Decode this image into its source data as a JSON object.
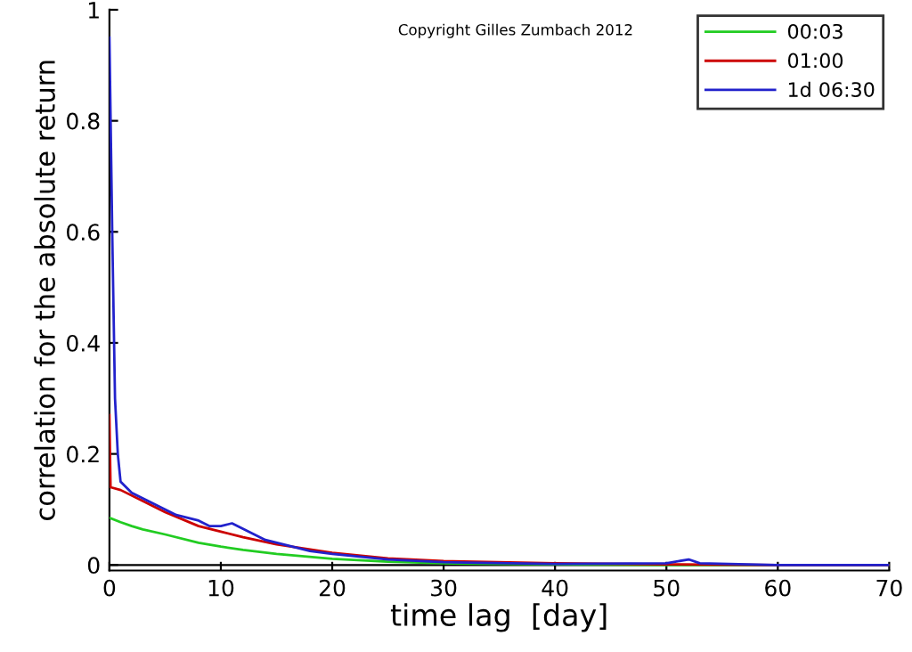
{
  "chart_data": {
    "type": "line",
    "xlabel": "time lag  [day]",
    "ylabel": "correlation for the absolute return",
    "xlim": [
      0,
      70
    ],
    "ylim": [
      -0.01,
      1
    ],
    "xticks": [
      0,
      10,
      20,
      30,
      40,
      50,
      60,
      70
    ],
    "yticks": [
      0,
      0.2,
      0.4,
      0.6,
      0.8,
      1
    ],
    "grid": false,
    "legend": "top right",
    "marker": "none",
    "line_style": "solid",
    "ref_lines": [
      {
        "axis": "y",
        "value": 0,
        "color": "#000000"
      }
    ],
    "annotations": [
      "Copyright Gilles Zumbach 2012"
    ],
    "series": [
      {
        "name": "00:03",
        "color": "#22cc22",
        "x": [
          0,
          1,
          2,
          3,
          5,
          8,
          10,
          12,
          15,
          20,
          25,
          30,
          40,
          50,
          60,
          70
        ],
        "values": [
          0.085,
          0.077,
          0.07,
          0.064,
          0.055,
          0.04,
          0.033,
          0.027,
          0.02,
          0.011,
          0.006,
          0.003,
          0.001,
          0.0,
          0.0,
          0.0
        ]
      },
      {
        "name": "01:00",
        "color": "#cc0000",
        "x": [
          0,
          0.1,
          1,
          3,
          5,
          8,
          10,
          12,
          15,
          20,
          25,
          30,
          40,
          50,
          60,
          70
        ],
        "values": [
          0.27,
          0.14,
          0.135,
          0.115,
          0.095,
          0.07,
          0.06,
          0.05,
          0.037,
          0.022,
          0.012,
          0.007,
          0.003,
          0.001,
          0.0,
          0.0
        ]
      },
      {
        "name": "1d 06:30",
        "color": "#2222cc",
        "x": [
          0,
          0.25,
          0.5,
          0.75,
          1,
          2,
          3,
          4,
          5,
          6,
          8,
          9,
          10,
          11,
          12,
          13,
          14,
          16,
          18,
          20,
          25,
          30,
          40,
          50,
          52,
          53,
          60,
          70
        ],
        "values": [
          0.95,
          0.6,
          0.3,
          0.2,
          0.15,
          0.13,
          0.12,
          0.11,
          0.1,
          0.09,
          0.08,
          0.07,
          0.07,
          0.075,
          0.065,
          0.055,
          0.045,
          0.035,
          0.025,
          0.02,
          0.01,
          0.005,
          0.002,
          0.003,
          0.01,
          0.003,
          0.0,
          0.0
        ]
      }
    ]
  }
}
